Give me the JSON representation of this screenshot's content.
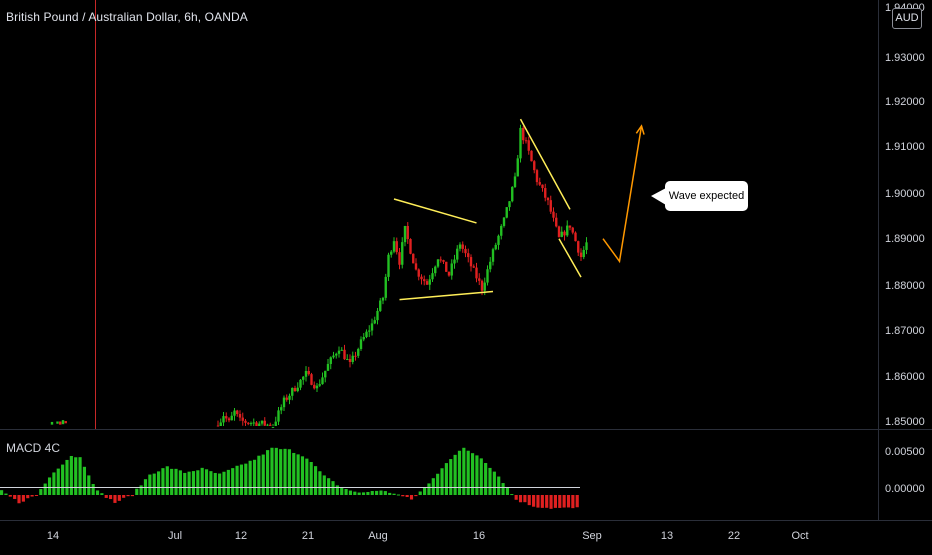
{
  "header": {
    "title": "British Pound / Australian Dollar, 6h, OANDA"
  },
  "currency_badge": "AUD",
  "indicator": {
    "label": "MACD 4C"
  },
  "annotation": {
    "text": "Wave expected"
  },
  "price_axis": {
    "labels": [
      "1.94000",
      "1.93000",
      "1.92000",
      "1.91000",
      "1.90000",
      "1.89000",
      "1.88000",
      "1.87000",
      "1.86000",
      "1.85000"
    ]
  },
  "macd_axis": {
    "labels": [
      "0.00500",
      "0.00000"
    ]
  },
  "time_axis": {
    "labels": [
      "14",
      "Jul",
      "12",
      "21",
      "Aug",
      "16",
      "Sep",
      "13",
      "22",
      "Oct"
    ]
  },
  "colors": {
    "up": "#26a69a",
    "bull": "#22c022",
    "bear": "#e02020",
    "pattern": "#ffee58",
    "forecast": "#ff9800",
    "background": "#000000"
  },
  "chart_data": {
    "type": "candlestick",
    "title": "British Pound / Australian Dollar, 6h, OANDA",
    "ylim": [
      1.8475,
      1.9408
    ],
    "macd_ylim": [
      -0.0016,
      0.0064
    ],
    "x_ticks": [
      "14",
      "Jul",
      "12",
      "21",
      "Aug",
      "16",
      "Sep",
      "13",
      "22",
      "Oct"
    ],
    "price_path": [
      [
        0,
        1.8476
      ],
      [
        1,
        1.85
      ],
      [
        2,
        1.8482
      ],
      [
        3,
        1.8506
      ],
      [
        4,
        1.8486
      ],
      [
        10,
        1.8476
      ],
      [
        12,
        1.853
      ],
      [
        14,
        1.856
      ],
      [
        16,
        1.859
      ],
      [
        18,
        1.856
      ],
      [
        20,
        1.861
      ],
      [
        22,
        1.865
      ],
      [
        24,
        1.861
      ],
      [
        26,
        1.866
      ],
      [
        28,
        1.87
      ],
      [
        30,
        1.876
      ],
      [
        31,
        1.885
      ],
      [
        32,
        1.889
      ],
      [
        33,
        1.884
      ],
      [
        34,
        1.891
      ],
      [
        36,
        1.882
      ],
      [
        38,
        1.879
      ],
      [
        40,
        1.885
      ],
      [
        42,
        1.881
      ],
      [
        44,
        1.888
      ],
      [
        46,
        1.883
      ],
      [
        48,
        1.878
      ],
      [
        50,
        1.886
      ],
      [
        52,
        1.893
      ],
      [
        54,
        1.902
      ],
      [
        55,
        1.913
      ],
      [
        56,
        1.91
      ],
      [
        58,
        1.902
      ],
      [
        60,
        1.897
      ],
      [
        62,
        1.889
      ],
      [
        64,
        1.892
      ],
      [
        66,
        1.885
      ],
      [
        67,
        1.888
      ]
    ],
    "macd_path": [
      [
        0,
        0.0004
      ],
      [
        2,
        -0.0008
      ],
      [
        4,
        0.0
      ],
      [
        6,
        0.0025
      ],
      [
        8,
        0.0042
      ],
      [
        9,
        0.004
      ],
      [
        11,
        0.0004
      ],
      [
        13,
        -0.0008
      ],
      [
        15,
        0.0
      ],
      [
        17,
        0.0022
      ],
      [
        19,
        0.003
      ],
      [
        21,
        0.0024
      ],
      [
        23,
        0.0028
      ],
      [
        25,
        0.0022
      ],
      [
        27,
        0.003
      ],
      [
        29,
        0.0038
      ],
      [
        31,
        0.005
      ],
      [
        33,
        0.0048
      ],
      [
        35,
        0.004
      ],
      [
        37,
        0.002
      ],
      [
        39,
        0.0008
      ],
      [
        41,
        0.0002
      ],
      [
        43,
        0.0005
      ],
      [
        45,
        0.0002
      ],
      [
        47,
        -0.0005
      ],
      [
        49,
        0.0012
      ],
      [
        51,
        0.0035
      ],
      [
        53,
        0.005
      ],
      [
        55,
        0.004
      ],
      [
        57,
        0.002
      ],
      [
        59,
        -0.0005
      ],
      [
        61,
        -0.0012
      ],
      [
        63,
        -0.0014
      ],
      [
        66,
        -0.0014
      ]
    ],
    "drawings": {
      "triangle_top": [
        [
          1.8978,
          32
        ],
        [
          1.8925,
          47
        ]
      ],
      "triangle_bottom": [
        [
          1.8755,
          33
        ],
        [
          1.8773,
          50
        ]
      ],
      "wedge_top": [
        [
          1.9155,
          55
        ],
        [
          1.8955,
          64
        ]
      ],
      "wedge_bottom": [
        [
          1.889,
          62
        ],
        [
          1.8805,
          66
        ]
      ],
      "forecast_path": [
        [
          1.889,
          70
        ],
        [
          1.884,
          73
        ],
        [
          1.914,
          77
        ]
      ]
    }
  }
}
